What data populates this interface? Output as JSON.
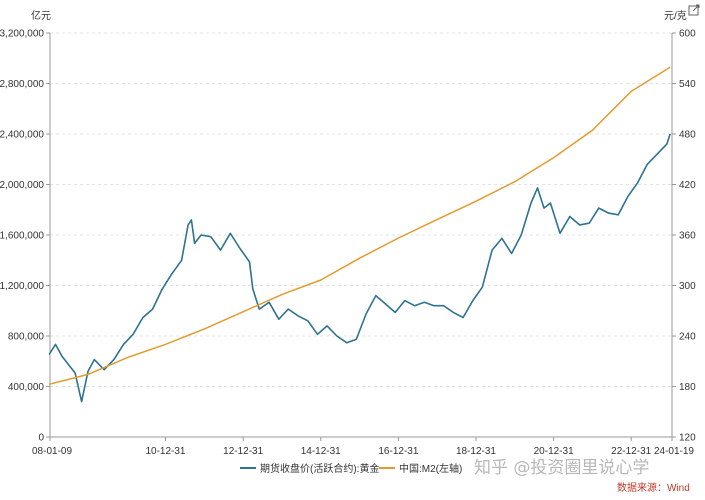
{
  "chart_data": {
    "type": "line",
    "left_unit": "亿元",
    "right_unit": "元/克",
    "x_tick_labels": [
      "08-01-09",
      "10-12-31",
      "12-12-31",
      "14-12-31",
      "16-12-31",
      "18-12-31",
      "20-12-31",
      "22-12-31",
      "24-01-19"
    ],
    "left_ticks": [
      "0",
      "400,000",
      "800,000",
      "1,200,000",
      "1,600,000",
      "2,000,000",
      "2,400,000",
      "2,800,000",
      "3,200,000"
    ],
    "right_ticks": [
      "120",
      "180",
      "240",
      "300",
      "360",
      "420",
      "480",
      "540",
      "600"
    ],
    "left_ylim": [
      0,
      3200000
    ],
    "right_ylim": [
      120,
      600
    ],
    "series": [
      {
        "name": "期货收盘价(活跃合约):黄金",
        "axis": "right",
        "color": "#2e7391",
        "x": [
          "2008-01",
          "2008-03",
          "2008-05",
          "2008-07",
          "2008-09",
          "2008-11",
          "2009-01",
          "2009-03",
          "2009-06",
          "2009-09",
          "2009-12",
          "2010-03",
          "2010-06",
          "2010-09",
          "2010-12",
          "2011-03",
          "2011-06",
          "2011-08",
          "2011-09",
          "2011-10",
          "2011-12",
          "2012-03",
          "2012-06",
          "2012-09",
          "2012-12",
          "2013-03",
          "2013-04",
          "2013-06",
          "2013-09",
          "2013-12",
          "2014-03",
          "2014-06",
          "2014-09",
          "2014-12",
          "2015-03",
          "2015-06",
          "2015-09",
          "2015-12",
          "2016-03",
          "2016-06",
          "2016-09",
          "2016-12",
          "2017-03",
          "2017-06",
          "2017-09",
          "2017-12",
          "2018-03",
          "2018-06",
          "2018-09",
          "2018-12",
          "2019-03",
          "2019-06",
          "2019-09",
          "2019-12",
          "2020-03",
          "2020-06",
          "2020-08",
          "2020-10",
          "2020-12",
          "2021-03",
          "2021-06",
          "2021-09",
          "2021-12",
          "2022-03",
          "2022-06",
          "2022-09",
          "2022-12",
          "2023-03",
          "2023-06",
          "2023-09",
          "2023-12",
          "2024-01"
        ],
        "values": [
          218,
          230,
          216,
          206,
          196,
          162,
          198,
          212,
          200,
          212,
          230,
          242,
          262,
          272,
          296,
          314,
          330,
          372,
          378,
          350,
          360,
          358,
          342,
          362,
          344,
          328,
          296,
          272,
          280,
          260,
          272,
          264,
          258,
          242,
          252,
          240,
          232,
          236,
          266,
          288,
          278,
          268,
          282,
          276,
          280,
          276,
          276,
          268,
          262,
          282,
          298,
          342,
          356,
          338,
          360,
          398,
          416,
          392,
          398,
          362,
          382,
          372,
          374,
          392,
          386,
          384,
          406,
          422,
          444,
          456,
          468,
          480
        ]
      },
      {
        "name": "中国:M2(左轴)",
        "axis": "left",
        "color": "#e39b2f",
        "x": [
          "2008-01",
          "2009-01",
          "2010-01",
          "2011-01",
          "2012-01",
          "2013-01",
          "2014-01",
          "2015-01",
          "2016-01",
          "2017-01",
          "2018-01",
          "2019-01",
          "2020-01",
          "2021-01",
          "2022-01",
          "2023-01",
          "2024-01"
        ],
        "values": [
          417800,
          496100,
          627500,
          733900,
          855900,
          992100,
          1129700,
          1243500,
          1416300,
          1575900,
          1723700,
          1867400,
          2023100,
          2213000,
          2430000,
          2738100,
          2929000
        ]
      }
    ],
    "watermark": "知乎 @投资圈里说心学",
    "source": "数据来源：Wind"
  }
}
